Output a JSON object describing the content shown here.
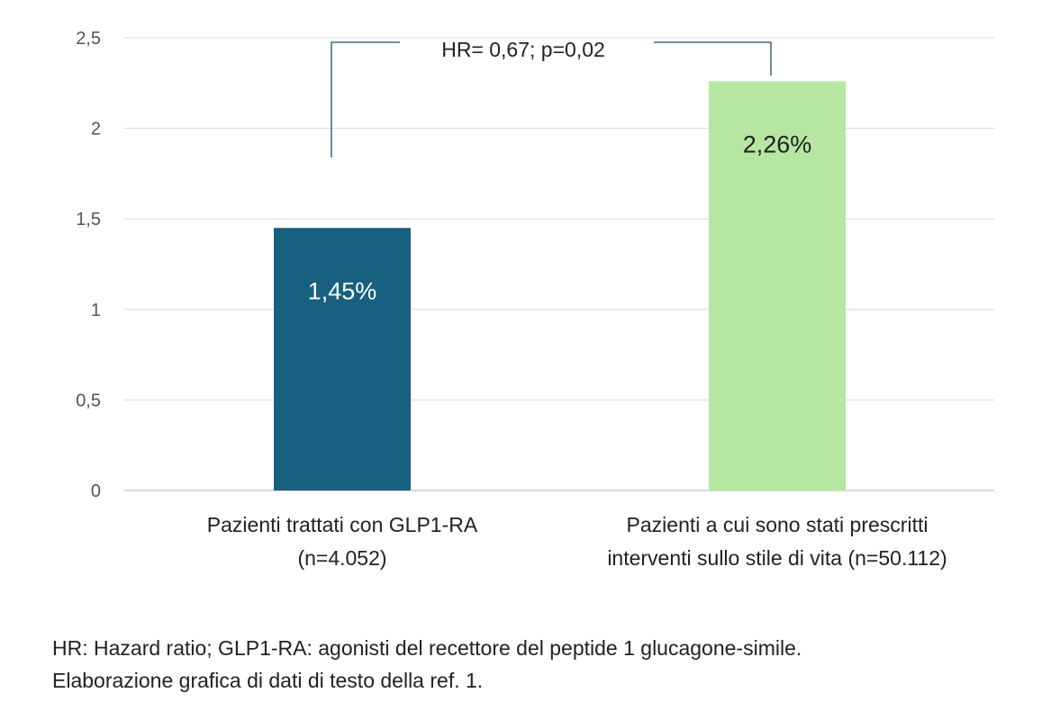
{
  "chart_data": {
    "type": "bar",
    "categories": [
      [
        "Pazienti trattati con GLP1-RA",
        "(n=4.052)"
      ],
      [
        "Pazienti a cui sono stati prescritti",
        "interventi sullo stile di vita (n=50.112)"
      ]
    ],
    "values": [
      1.45,
      2.26
    ],
    "data_labels": [
      "1,45%",
      "2,26%"
    ],
    "colors": [
      "#17607f",
      "#b5e6a2"
    ],
    "data_label_colors": [
      "#ffffff",
      "#222222"
    ],
    "ylim": [
      0,
      2.5
    ],
    "yticks": [
      "0",
      "0,5",
      "1",
      "1,5",
      "2",
      "2,5"
    ],
    "grid": true,
    "annotation": "HR= 0,67; p=0,02",
    "annotation_color": "#1f4e6b"
  },
  "footnote": [
    "HR: Hazard ratio; GLP1-RA: agonisti del recettore del peptide 1 glucagone-simile.",
    "Elaborazione grafica di dati di testo della ref. 1."
  ]
}
